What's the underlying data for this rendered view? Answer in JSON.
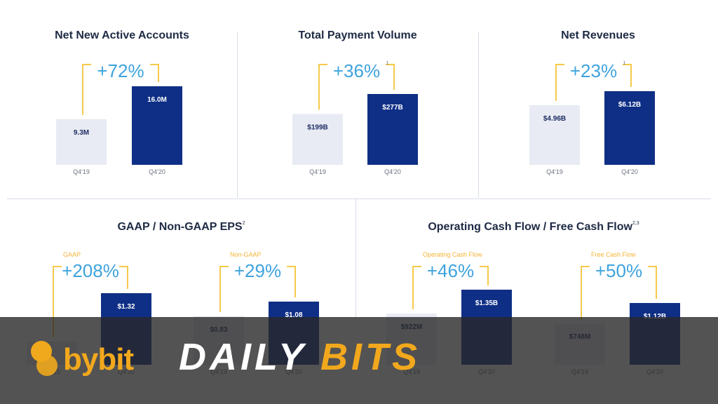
{
  "colors": {
    "q419": "#e8ebf3",
    "q420": "#0f2f86",
    "bracket": "#f6c94a",
    "growth": "#3ea3dd",
    "label_dark": "#1d2c63",
    "label_light": "#ffffff",
    "axis_text": "#6b7280",
    "sublabel": "#f5b335"
  },
  "panels": {
    "net_new": {
      "title": "Net New Active Accounts",
      "sup": ""
    },
    "tpv": {
      "title": "Total Payment Volume",
      "sup": ""
    },
    "rev": {
      "title": "Net Revenues",
      "sup": ""
    },
    "eps": {
      "title": "GAAP / Non-GAAP EPS",
      "sup": "2"
    },
    "cash": {
      "title": "Operating Cash Flow / Free Cash Flow",
      "sup": "2,3"
    }
  },
  "chart_data": [
    {
      "type": "bar",
      "title": "Net New Active Accounts",
      "categories": [
        "Q4'19",
        "Q4'20"
      ],
      "values": [
        9.3,
        16.0
      ],
      "value_labels": [
        "9.3M",
        "16.0M"
      ],
      "growth": "+72%",
      "growth_sup": "",
      "sublabel": ""
    },
    {
      "type": "bar",
      "title": "Total Payment Volume",
      "categories": [
        "Q4'19",
        "Q4'20"
      ],
      "values": [
        199,
        277
      ],
      "value_labels": [
        "$199B",
        "$277B"
      ],
      "growth": "+36%",
      "growth_sup": "1",
      "sublabel": ""
    },
    {
      "type": "bar",
      "title": "Net Revenues",
      "categories": [
        "Q4'19",
        "Q4'20"
      ],
      "values": [
        4.96,
        6.12
      ],
      "value_labels": [
        "$4.96B",
        "$6.12B"
      ],
      "growth": "+23%",
      "growth_sup": "1",
      "sublabel": ""
    },
    {
      "type": "bar",
      "title": "GAAP / Non-GAAP EPS",
      "categories": [
        "Q4'19",
        "Q4'20"
      ],
      "values": [
        0.43,
        1.32
      ],
      "value_labels": [
        "",
        "$1.32"
      ],
      "growth": "+208%",
      "growth_sup": "",
      "sublabel": "GAAP"
    },
    {
      "type": "bar",
      "title": "GAAP / Non-GAAP EPS",
      "categories": [
        "Q4'19",
        "Q4'20"
      ],
      "values": [
        0.83,
        1.08
      ],
      "value_labels": [
        "$0.83",
        "$1.08"
      ],
      "growth": "+29%",
      "growth_sup": "",
      "sublabel": "Non-GAAP"
    },
    {
      "type": "bar",
      "title": "Operating Cash Flow / Free Cash Flow",
      "categories": [
        "Q4'19",
        "Q4'20"
      ],
      "values": [
        922,
        1350
      ],
      "value_labels": [
        "$922M",
        "$1.35B"
      ],
      "growth": "+46%",
      "growth_sup": "",
      "sublabel": "Operating Cash Flow"
    },
    {
      "type": "bar",
      "title": "Operating Cash Flow / Free Cash Flow",
      "categories": [
        "Q4'19",
        "Q4'20"
      ],
      "values": [
        748,
        1120
      ],
      "value_labels": [
        "$748M",
        "$1.12B"
      ],
      "growth": "+50%",
      "growth_sup": "",
      "sublabel": "Free Cash Flow"
    }
  ],
  "banner": {
    "brand": "bybit",
    "daily": "DAILY",
    "bits": "BITS"
  }
}
